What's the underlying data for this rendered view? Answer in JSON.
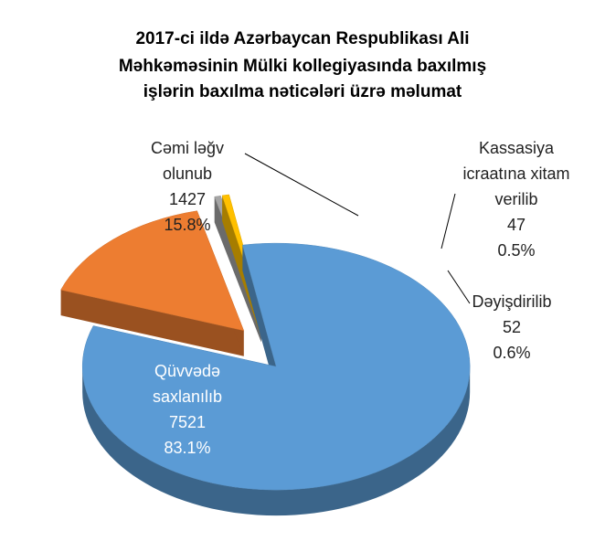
{
  "chart_data": {
    "type": "pie3d",
    "title": [
      "2017-ci ildə Azərbaycan Respublikası Ali",
      "Məhkəməsinin Mülki  kollegiyasında  baxılmış",
      "işlərin baxılma nəticələri üzrə məlumat"
    ],
    "categories": [
      "Qüvvədə saxlanılıb",
      "Cəmi ləğv olunub",
      "Kassasiya icraatına xitam verilib",
      "Dəyişdirilib"
    ],
    "values": [
      7521,
      1427,
      47,
      52
    ],
    "percent_labels": [
      "83.1%",
      "15.8%",
      "0.5%",
      "0.6%"
    ],
    "colors": [
      "#5b9bd5",
      "#ed7d31",
      "#a5a5a5",
      "#ffc000"
    ]
  }
}
